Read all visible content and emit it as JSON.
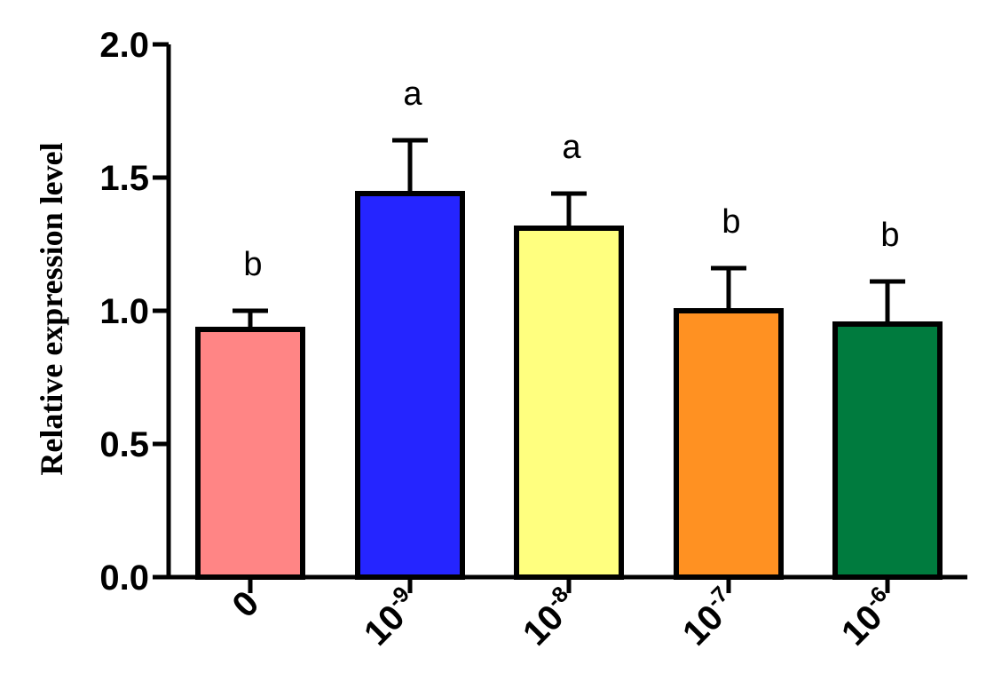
{
  "chart_data": {
    "type": "bar",
    "title": "",
    "xlabel": "",
    "ylabel": "Relative expression level",
    "ylim": [
      0,
      2.0
    ],
    "yticks": [
      0.0,
      0.5,
      1.0,
      1.5,
      2.0
    ],
    "ytick_labels": [
      "0.0",
      "0.5",
      "1.0",
      "1.5",
      "2.0"
    ],
    "grid": false,
    "categories": [
      {
        "base": "0",
        "sup": ""
      },
      {
        "base": "10",
        "sup": "-9"
      },
      {
        "base": "10",
        "sup": "-8"
      },
      {
        "base": "10",
        "sup": "-7"
      },
      {
        "base": "10",
        "sup": "-6"
      }
    ],
    "values": [
      0.93,
      1.44,
      1.31,
      1.0,
      0.95
    ],
    "errors": [
      0.07,
      0.2,
      0.13,
      0.16,
      0.16
    ],
    "significance": [
      "b",
      "a",
      "a",
      "b",
      "b"
    ],
    "colors": [
      "#FF8585",
      "#2525FF",
      "#FFFF7F",
      "#FF9122",
      "#007B3E"
    ]
  }
}
